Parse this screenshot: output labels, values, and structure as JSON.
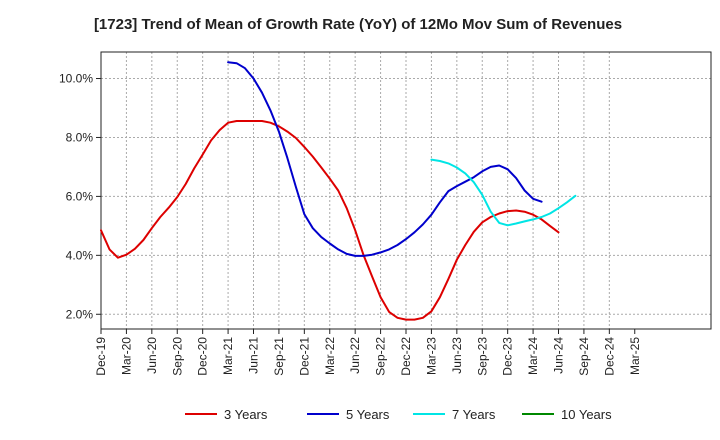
{
  "chart_data": {
    "type": "line",
    "title": "[1723]  Trend of Mean of Growth Rate (YoY) of 12Mo Mov Sum of Revenues",
    "xlabel": "",
    "ylabel": "",
    "x_range_month_index": [
      0,
      72
    ],
    "ylim": [
      1.5,
      10.9
    ],
    "y_ticks": [
      2.0,
      4.0,
      6.0,
      8.0,
      10.0
    ],
    "y_tick_labels": [
      "2.0%",
      "4.0%",
      "6.0%",
      "8.0%",
      "10.0%"
    ],
    "x_tick_labels": [
      "Dec-19",
      "Mar-20",
      "Jun-20",
      "Sep-20",
      "Dec-20",
      "Mar-21",
      "Jun-21",
      "Sep-21",
      "Dec-21",
      "Mar-22",
      "Jun-22",
      "Sep-22",
      "Dec-22",
      "Mar-23",
      "Jun-23",
      "Sep-23",
      "Dec-23",
      "Mar-24",
      "Jun-24",
      "Sep-24",
      "Dec-24",
      "Mar-25"
    ],
    "grid": true,
    "legend_position": "bottom",
    "series": [
      {
        "name": "3 Years",
        "color": "#dd0000",
        "start_index": 0,
        "values": [
          4.85,
          4.2,
          3.92,
          4.02,
          4.22,
          4.52,
          4.92,
          5.3,
          5.62,
          5.98,
          6.42,
          6.95,
          7.42,
          7.9,
          8.25,
          8.5,
          8.56,
          8.56,
          8.56,
          8.56,
          8.5,
          8.38,
          8.2,
          7.98,
          7.68,
          7.35,
          6.98,
          6.6,
          6.2,
          5.6,
          4.85,
          4.0,
          3.28,
          2.58,
          2.08,
          1.88,
          1.82,
          1.82,
          1.88,
          2.1,
          2.58,
          3.2,
          3.85,
          4.35,
          4.8,
          5.12,
          5.3,
          5.42,
          5.5,
          5.52,
          5.48,
          5.38,
          5.22,
          5.0,
          4.78
        ]
      },
      {
        "name": "5 Years",
        "color": "#0000cc",
        "start_index": 15,
        "values": [
          10.55,
          10.52,
          10.35,
          10.0,
          9.52,
          8.92,
          8.2,
          7.3,
          6.32,
          5.4,
          4.92,
          4.62,
          4.4,
          4.2,
          4.05,
          3.98,
          3.98,
          4.02,
          4.1,
          4.2,
          4.35,
          4.55,
          4.78,
          5.05,
          5.38,
          5.8,
          6.18,
          6.35,
          6.5,
          6.65,
          6.85,
          7.0,
          7.05,
          6.92,
          6.62,
          6.2,
          5.92,
          5.82
        ]
      },
      {
        "name": "7 Years",
        "color": "#00e5e5",
        "start_index": 39,
        "values": [
          7.25,
          7.2,
          7.12,
          6.98,
          6.78,
          6.48,
          6.05,
          5.48,
          5.1,
          5.02,
          5.08,
          5.15,
          5.22,
          5.3,
          5.42,
          5.6,
          5.8,
          6.02
        ]
      },
      {
        "name": "10 Years",
        "color": "#008800",
        "start_index": 0,
        "values": []
      }
    ]
  }
}
